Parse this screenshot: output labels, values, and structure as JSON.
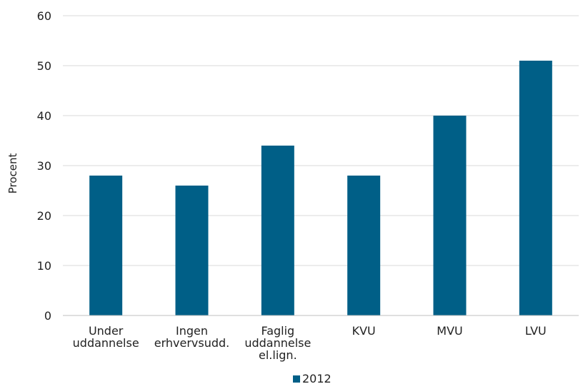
{
  "chart_data": {
    "type": "bar",
    "categories": [
      [
        "Under",
        "uddannelse"
      ],
      [
        "Ingen",
        "erhvervsudd."
      ],
      [
        "Faglig",
        "uddannelse",
        "el.lign."
      ],
      [
        "KVU"
      ],
      [
        "MVU"
      ],
      [
        "LVU"
      ]
    ],
    "series": [
      {
        "name": "2012",
        "values": [
          28,
          26,
          34,
          28,
          40,
          51
        ]
      }
    ],
    "ylabel": "Procent",
    "xlabel": "",
    "ylim": [
      0,
      60
    ],
    "yticks": [
      0,
      10,
      20,
      30,
      40,
      50,
      60
    ],
    "grid": true,
    "legend_position": "bottom-center",
    "colors": {
      "bar": "#005f87",
      "grid": "#d9d9d9",
      "axis": "#bfbfbf"
    }
  }
}
